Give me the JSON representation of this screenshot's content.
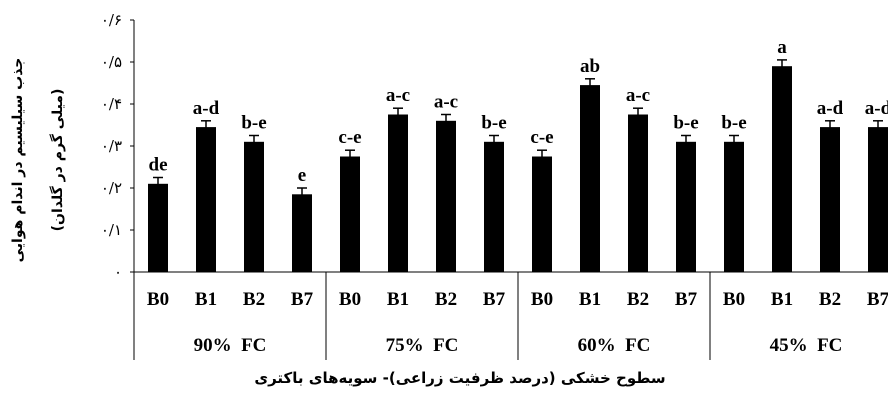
{
  "chart_data": {
    "type": "bar",
    "ylabel": "جذب سیلیسیم در اندام هوایی",
    "ylabel_unit": "(میلی گرم در گلدان)",
    "xlabel": "سطوح خشکی (درصد ظرفیت زراعی)- سویه‌های باکتری",
    "ylim": [
      0,
      0.6
    ],
    "yticks": [
      {
        "value": 0,
        "label": "۰"
      },
      {
        "value": 0.1,
        "label": "۰/۱"
      },
      {
        "value": 0.2,
        "label": "۰/۲"
      },
      {
        "value": 0.3,
        "label": "۰/۳"
      },
      {
        "value": 0.4,
        "label": "۰/۴"
      },
      {
        "value": 0.5,
        "label": "۰/۵"
      },
      {
        "value": 0.6,
        "label": "۰/۶"
      }
    ],
    "groups": [
      {
        "label": "90%  FC",
        "bars": [
          {
            "category": "B0",
            "value": 0.21,
            "error": 0.015,
            "letter": "de"
          },
          {
            "category": "B1",
            "value": 0.345,
            "error": 0.015,
            "letter": "a-d"
          },
          {
            "category": "B2",
            "value": 0.31,
            "error": 0.015,
            "letter": "b-e"
          },
          {
            "category": "B7",
            "value": 0.185,
            "error": 0.015,
            "letter": "e"
          }
        ]
      },
      {
        "label": "75%  FC",
        "bars": [
          {
            "category": "B0",
            "value": 0.275,
            "error": 0.015,
            "letter": "c-e"
          },
          {
            "category": "B1",
            "value": 0.375,
            "error": 0.015,
            "letter": "a-c"
          },
          {
            "category": "B2",
            "value": 0.36,
            "error": 0.015,
            "letter": "a-c"
          },
          {
            "category": "B7",
            "value": 0.31,
            "error": 0.015,
            "letter": "b-e"
          }
        ]
      },
      {
        "label": "60%  FC",
        "bars": [
          {
            "category": "B0",
            "value": 0.275,
            "error": 0.015,
            "letter": "c-e"
          },
          {
            "category": "B1",
            "value": 0.445,
            "error": 0.015,
            "letter": "ab"
          },
          {
            "category": "B2",
            "value": 0.375,
            "error": 0.015,
            "letter": "a-c"
          },
          {
            "category": "B7",
            "value": 0.31,
            "error": 0.015,
            "letter": "b-e"
          }
        ]
      },
      {
        "label": "45%  FC",
        "bars": [
          {
            "category": "B0",
            "value": 0.31,
            "error": 0.015,
            "letter": "b-e"
          },
          {
            "category": "B1",
            "value": 0.49,
            "error": 0.015,
            "letter": "a"
          },
          {
            "category": "B2",
            "value": 0.345,
            "error": 0.015,
            "letter": "a-d"
          },
          {
            "category": "B7",
            "value": 0.345,
            "error": 0.015,
            "letter": "a-d"
          }
        ]
      }
    ],
    "bar_color": "#000000",
    "grid": false,
    "legend": "none"
  }
}
